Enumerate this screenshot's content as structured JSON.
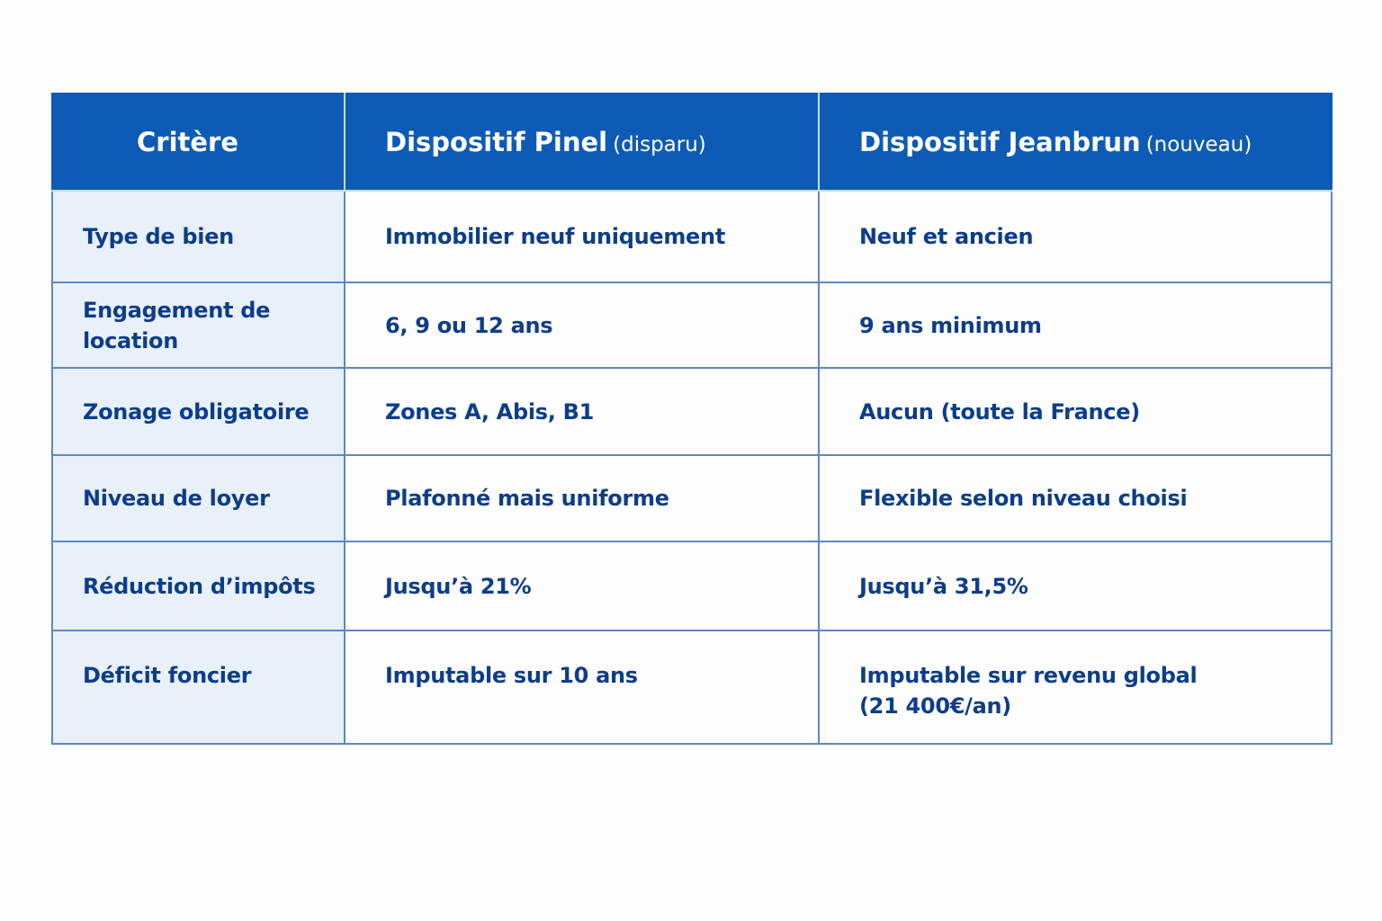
{
  "table": {
    "header": [
      {
        "main": "Critère"
      },
      {
        "main": "Dispositif Pinel",
        "note": "(disparu)"
      },
      {
        "main": "Dispositif Jeanbrun",
        "note": "(nouveau)"
      }
    ],
    "rows": [
      [
        "Type de bien",
        "Immobilier neuf uniquement",
        "Neuf et ancien"
      ],
      [
        "Engagement de location",
        "6, 9 ou 12 ans",
        "9 ans minimum"
      ],
      [
        "Zonage obligatoire",
        "Zones A, Abis, B1",
        "Aucun (toute la France)"
      ],
      [
        "Niveau de loyer",
        "Plafonné mais uniforme",
        "Flexible selon niveau choisi"
      ],
      [
        "Réduction d’impôts",
        "Jusqu’à 21%",
        "Jusqu’à 31,5%"
      ],
      [
        "Déficit foncier",
        "Imputable sur 10 ans",
        [
          "Imputable sur revenu global",
          "(21 400€/an)"
        ]
      ]
    ]
  }
}
